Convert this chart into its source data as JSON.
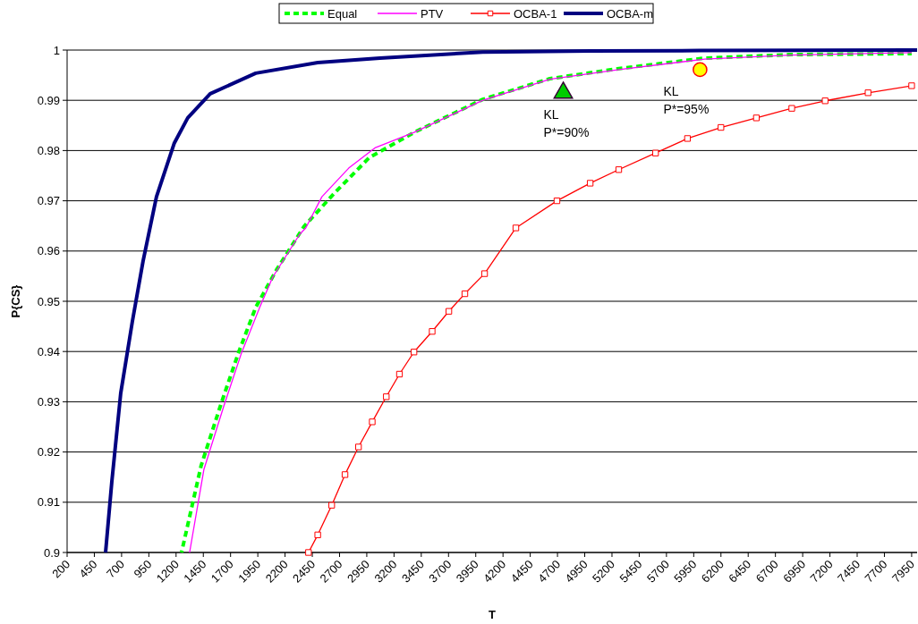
{
  "chart_data": {
    "type": "line",
    "xlabel": "T",
    "ylabel": "P{CS}",
    "xlim": [
      200,
      8000
    ],
    "ylim": [
      0.9,
      1
    ],
    "xticks": [
      200,
      450,
      700,
      950,
      1200,
      1450,
      1700,
      1950,
      2200,
      2450,
      2700,
      2950,
      3200,
      3450,
      3700,
      3950,
      4200,
      4450,
      4700,
      4950,
      5200,
      5450,
      5700,
      5950,
      6200,
      6450,
      6700,
      6950,
      7200,
      7450,
      7700,
      7950
    ],
    "yticks": [
      0.9,
      0.91,
      0.92,
      0.93,
      0.94,
      0.95,
      0.96,
      0.97,
      0.98,
      0.99,
      1
    ],
    "grid": "y",
    "legend": "top",
    "series": [
      {
        "name": "Equal",
        "color": "#00ff00",
        "line_style": "dashed",
        "marker": "none",
        "x": [
          1250,
          1430,
          1619,
          1775,
          1931,
          2120,
          2374,
          2661,
          2973,
          3383,
          4015,
          4630,
          5262,
          6050,
          6845,
          7950
        ],
        "values": [
          0.9,
          0.9173,
          0.93,
          0.9399,
          0.9488,
          0.9562,
          0.9649,
          0.9717,
          0.9786,
          0.9836,
          0.9902,
          0.9943,
          0.9963,
          0.9984,
          0.9991,
          0.9993
        ]
      },
      {
        "name": "PTV",
        "color": "#ff00ff",
        "line_style": "solid",
        "marker": "none",
        "x": [
          1324,
          1455,
          1636,
          1800,
          1964,
          2087,
          2333,
          2390,
          2538,
          2784,
          3030,
          3383,
          4015,
          4630,
          5262,
          6050,
          6845,
          7950
        ],
        "values": [
          0.9,
          0.9165,
          0.929,
          0.9397,
          0.9486,
          0.9548,
          0.9633,
          0.9646,
          0.9708,
          0.9765,
          0.9806,
          0.9836,
          0.99,
          0.9942,
          0.9961,
          0.9982,
          0.999,
          0.9995
        ]
      },
      {
        "name": "OCBA-1",
        "color": "#ff0000",
        "line_style": "solid",
        "marker": "square",
        "x": [
          2415,
          2500,
          2628,
          2750,
          2874,
          3000,
          3129,
          3250,
          3383,
          3550,
          3703,
          3850,
          4031,
          4318,
          4695,
          5000,
          5262,
          5600,
          5893,
          6200,
          6525,
          6850,
          7156,
          7550,
          7950
        ],
        "values": [
          0.9,
          0.9035,
          0.9094,
          0.9155,
          0.921,
          0.926,
          0.931,
          0.9355,
          0.9399,
          0.944,
          0.948,
          0.9515,
          0.9555,
          0.9646,
          0.97,
          0.9735,
          0.9762,
          0.9795,
          0.9824,
          0.9846,
          0.9865,
          0.9884,
          0.9899,
          0.9915,
          0.9929
        ]
      },
      {
        "name": "OCBA-m",
        "color": "#000080",
        "line_style": "solid",
        "marker": "none",
        "x": [
          553,
          610,
          692,
          799,
          897,
          1020,
          1184,
          1307,
          1513,
          1931,
          2500,
          3071,
          4015,
          5000,
          6000,
          8000
        ],
        "values": [
          0.9,
          0.914,
          0.9317,
          0.946,
          0.958,
          0.9708,
          0.9815,
          0.9865,
          0.9913,
          0.9954,
          0.9975,
          0.9984,
          0.9996,
          0.9998,
          0.9999,
          1
        ]
      },
      {
        "type": "scatter",
        "color": "#00cc00",
        "marker": "triangle",
        "x": [
          4753
        ],
        "values": [
          0.9915
        ]
      },
      {
        "type": "scatter",
        "color": "#ffff00",
        "marker": "circle",
        "x": [
          6008
        ],
        "values": [
          0.9961
        ]
      }
    ],
    "annotations": [
      {
        "text": "KL\nP*=90%",
        "x": 4753,
        "y": 0.9915
      },
      {
        "text": "KL\nP*=95%",
        "x": 6008,
        "y": 0.9961
      }
    ]
  }
}
